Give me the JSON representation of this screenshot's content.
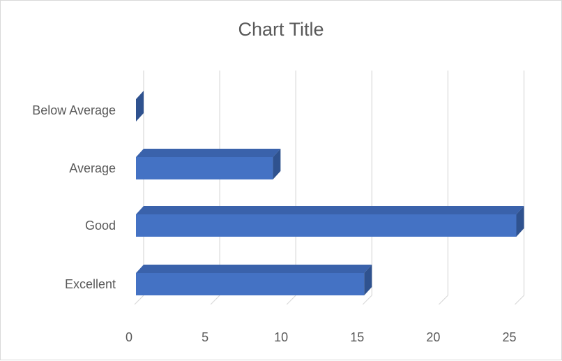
{
  "chart_data": {
    "type": "bar",
    "orientation": "horizontal",
    "style": "3d",
    "title": "Chart Title",
    "categories": [
      "Excellent",
      "Good",
      "Average",
      "Below Average"
    ],
    "values": [
      15,
      25,
      9,
      0
    ],
    "xlim": [
      0,
      25
    ],
    "xticks": [
      "0",
      "5",
      "10",
      "15",
      "20",
      "25"
    ],
    "grid": true,
    "legend": "none",
    "bar_color": "#4472c4",
    "bar_side_color": "#2f528f",
    "bar_top_color": "#3a62ab"
  }
}
